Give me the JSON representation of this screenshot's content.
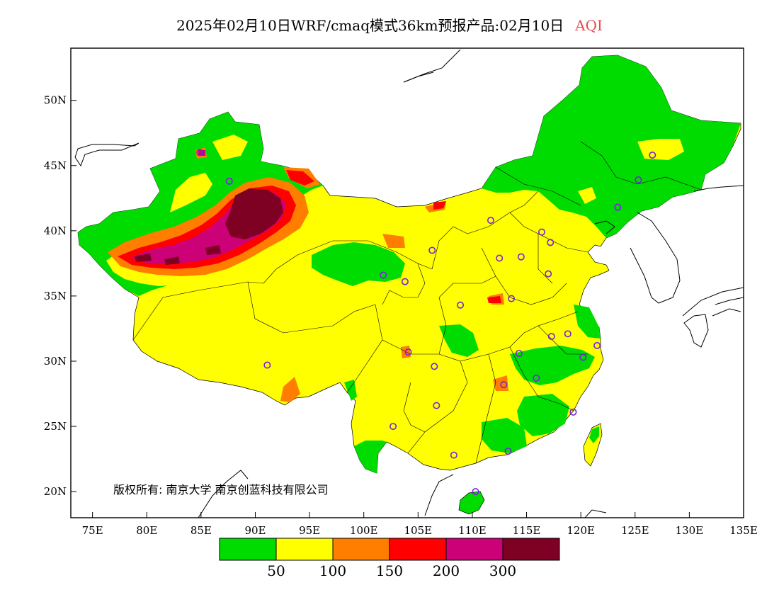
{
  "title": {
    "main": "2025年02月10日WRF/cmaq模式36km预报产品:02月10日",
    "variable": "AQI",
    "variable_color": "#e84b4b"
  },
  "map": {
    "lon_range": [
      73,
      135
    ],
    "lat_range": [
      18,
      54
    ],
    "lon_ticks": [
      "75E",
      "80E",
      "85E",
      "90E",
      "95E",
      "100E",
      "105E",
      "110E",
      "115E",
      "120E",
      "125E",
      "130E",
      "135E"
    ],
    "lon_values": [
      75,
      80,
      85,
      90,
      95,
      100,
      105,
      110,
      115,
      120,
      125,
      130,
      135
    ],
    "lat_ticks": [
      "20N",
      "25N",
      "30N",
      "35N",
      "40N",
      "45N",
      "50N"
    ],
    "lat_values": [
      20,
      25,
      30,
      35,
      40,
      45,
      50
    ],
    "copyright": "版权所有: 南京大学  南京创蓝科技有限公司"
  },
  "legend": {
    "colors": [
      "#00dc00",
      "#ffff00",
      "#ff7e00",
      "#ff0000",
      "#cc0077",
      "#7e0023"
    ],
    "thresholds": [
      "50",
      "100",
      "150",
      "200",
      "300"
    ]
  },
  "stations": [
    {
      "lon": 87.6,
      "lat": 43.8
    },
    {
      "lon": 91.1,
      "lat": 29.7
    },
    {
      "lon": 101.8,
      "lat": 36.6
    },
    {
      "lon": 103.8,
      "lat": 36.1
    },
    {
      "lon": 106.3,
      "lat": 38.5
    },
    {
      "lon": 111.7,
      "lat": 40.8
    },
    {
      "lon": 112.5,
      "lat": 37.9
    },
    {
      "lon": 114.5,
      "lat": 38.0
    },
    {
      "lon": 116.4,
      "lat": 39.9
    },
    {
      "lon": 117.2,
      "lat": 39.1
    },
    {
      "lon": 117.0,
      "lat": 36.7
    },
    {
      "lon": 113.6,
      "lat": 34.8
    },
    {
      "lon": 108.9,
      "lat": 34.3
    },
    {
      "lon": 104.1,
      "lat": 30.7
    },
    {
      "lon": 106.5,
      "lat": 29.6
    },
    {
      "lon": 106.7,
      "lat": 26.6
    },
    {
      "lon": 102.7,
      "lat": 25.0
    },
    {
      "lon": 108.3,
      "lat": 22.8
    },
    {
      "lon": 113.3,
      "lat": 23.1
    },
    {
      "lon": 110.3,
      "lat": 20.0
    },
    {
      "lon": 112.9,
      "lat": 28.2
    },
    {
      "lon": 114.3,
      "lat": 30.6
    },
    {
      "lon": 115.9,
      "lat": 28.7
    },
    {
      "lon": 117.3,
      "lat": 31.9
    },
    {
      "lon": 118.8,
      "lat": 32.1
    },
    {
      "lon": 120.2,
      "lat": 30.3
    },
    {
      "lon": 121.5,
      "lat": 31.2
    },
    {
      "lon": 119.3,
      "lat": 26.1
    },
    {
      "lon": 123.4,
      "lat": 41.8
    },
    {
      "lon": 125.3,
      "lat": 43.9
    },
    {
      "lon": 126.6,
      "lat": 45.8
    },
    {
      "lon": 84.9,
      "lat": 46.0
    }
  ]
}
